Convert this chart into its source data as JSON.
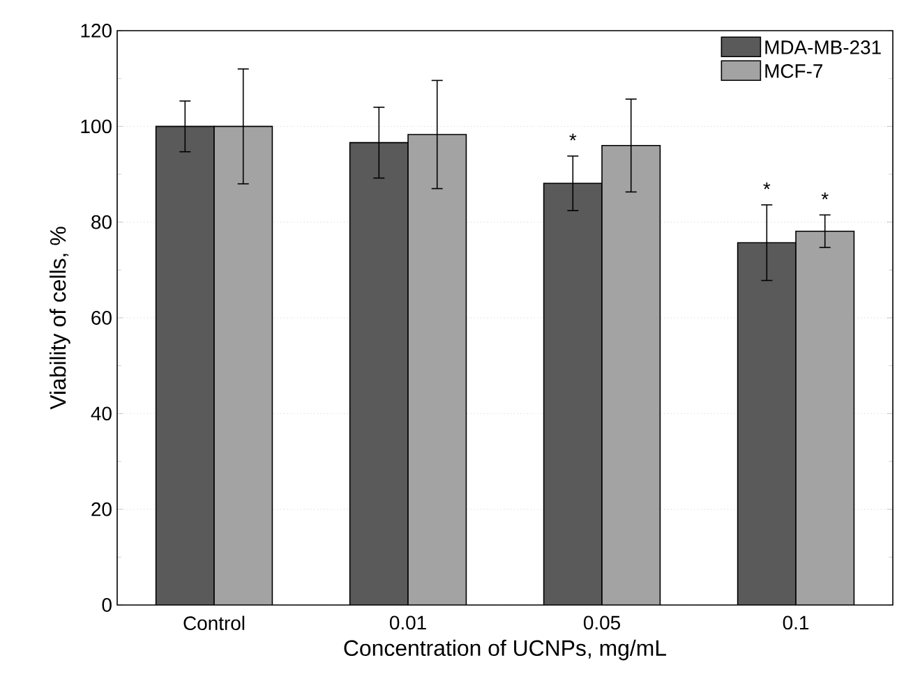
{
  "chart_data": {
    "type": "bar",
    "xlabel": "Concentration of UCNPs, mg/mL",
    "ylabel": "Viability of cells, %",
    "categories": [
      "Control",
      "0.01",
      "0.05",
      "0.1"
    ],
    "series": [
      {
        "name": "MDA-MB-231",
        "color": "#5a5a5a",
        "values": [
          100,
          96.6,
          88.1,
          75.7
        ],
        "errors": [
          5.3,
          7.4,
          5.7,
          7.9
        ]
      },
      {
        "name": "MCF-7",
        "color": "#a3a3a3",
        "values": [
          100,
          98.3,
          96,
          78.1
        ],
        "errors": [
          12,
          11.3,
          9.7,
          3.4
        ]
      }
    ],
    "ylim": [
      0,
      120
    ],
    "yticks": [
      0,
      20,
      40,
      60,
      80,
      100,
      120
    ],
    "grid": "y",
    "legend": "top right",
    "annotations": [
      "*",
      "*",
      "*"
    ]
  }
}
